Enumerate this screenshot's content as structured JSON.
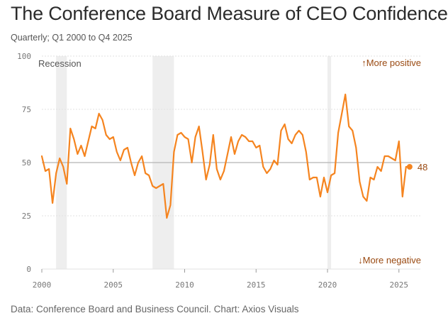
{
  "header": {
    "title": "The Conference Board Measure of CEO Confidence",
    "subtitle": "Quarterly; Q1 2000 to Q4 2025"
  },
  "footer": {
    "source": "Data: Conference Board and Business Council. Chart: Axios Visuals"
  },
  "colors": {
    "line": "#f5841f",
    "label": "#9a4a12",
    "recession": "#eeeeee",
    "reference": "#b5b5b5",
    "grid": "#e2e2e2"
  },
  "chart_data": {
    "type": "line",
    "title": "The Conference Board Measure of CEO Confidence",
    "subtitle": "Quarterly; Q1 2000 to Q4 2025",
    "xlabel": "",
    "ylabel": "",
    "xlim": [
      2000,
      2026.5
    ],
    "ylim": [
      0,
      100
    ],
    "x_ticks": [
      "2000",
      "2005",
      "2010",
      "2015",
      "2020",
      "2025"
    ],
    "y_ticks": [
      "100",
      "75",
      "50",
      "25",
      "0"
    ],
    "reference_line": 50,
    "grid": true,
    "recession_label": "Recession",
    "recessions": [
      [
        2001.0,
        2001.75
      ],
      [
        2007.75,
        2009.25
      ],
      [
        2020.0,
        2020.25
      ]
    ],
    "annotations": {
      "positive": "↑More positive",
      "negative": "↓More negative"
    },
    "last_value_label": "48",
    "series": [
      {
        "name": "CEO Confidence",
        "start": 2000.0,
        "step": 0.25,
        "values": [
          53,
          46,
          47,
          31,
          45,
          52,
          48,
          40,
          66,
          61,
          54,
          58,
          53,
          60,
          67,
          66,
          73,
          70,
          63,
          61,
          62,
          55,
          51,
          56,
          57,
          50,
          44,
          50,
          53,
          45,
          44,
          39,
          38,
          39,
          40,
          24,
          30,
          55,
          63,
          64,
          62,
          61,
          50,
          62,
          67,
          55,
          42,
          49,
          63,
          47,
          42,
          46,
          54,
          62,
          54,
          60,
          63,
          62,
          60,
          60,
          57,
          58,
          48,
          45,
          47,
          51,
          49,
          65,
          68,
          61,
          59,
          63,
          65,
          63,
          55,
          42,
          43,
          43,
          34,
          43,
          36,
          44,
          45,
          64,
          73,
          82,
          67,
          65,
          57,
          41,
          34,
          32,
          43,
          42,
          48,
          46,
          53,
          53,
          52,
          51,
          60,
          34,
          48,
          48
        ]
      }
    ]
  }
}
